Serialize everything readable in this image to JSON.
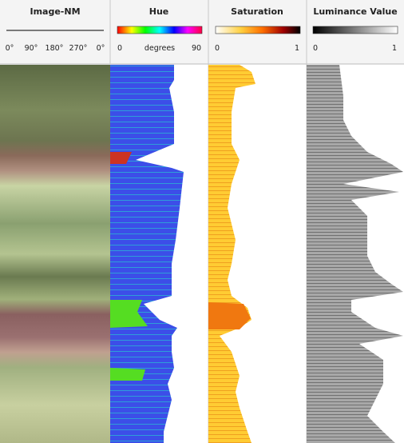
{
  "tracks": [
    {
      "title": "Image-NM",
      "scale_labels": [
        "0°",
        "90°",
        "180°",
        "270°",
        "0°"
      ]
    },
    {
      "title": "Hue",
      "scale_labels": [
        "0",
        "degrees",
        "90"
      ]
    },
    {
      "title": "Saturation",
      "scale_labels": [
        "0",
        "1"
      ]
    },
    {
      "title": "Luminance Value",
      "scale_labels": [
        "0",
        "1"
      ]
    }
  ]
}
